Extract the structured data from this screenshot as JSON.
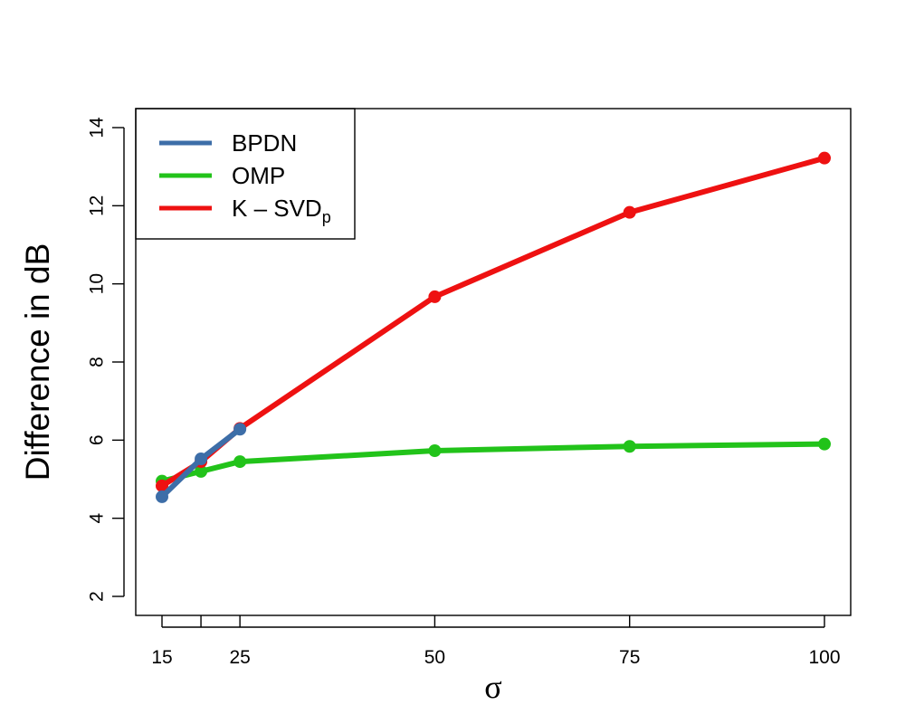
{
  "chart_data": {
    "type": "line",
    "title": "",
    "xlabel": "σ",
    "ylabel": "Difference in dB",
    "xlim": [
      15,
      100
    ],
    "ylim": [
      2,
      14
    ],
    "x_ticks": [
      15,
      20,
      25,
      50,
      75,
      100
    ],
    "x_tick_labels": [
      "15",
      "",
      "25",
      "50",
      "75",
      "100"
    ],
    "y_ticks": [
      2,
      4,
      6,
      8,
      10,
      12,
      14
    ],
    "y_tick_labels": [
      "2",
      "4",
      "6",
      "8",
      "10",
      "12",
      "14"
    ],
    "legend_position": "top-left",
    "grid": false,
    "series": [
      {
        "name": "OMP",
        "color": "#22c31a",
        "x": [
          15,
          20,
          25,
          50,
          75,
          100
        ],
        "y": [
          4.95,
          5.2,
          5.45,
          5.73,
          5.84,
          5.9
        ]
      },
      {
        "name": "K – SVD",
        "name_subscript": "p",
        "color": "#ee1111",
        "x": [
          15,
          20,
          25,
          50,
          75,
          100
        ],
        "y": [
          4.83,
          5.45,
          6.3,
          9.67,
          11.83,
          13.22
        ]
      },
      {
        "name": "BPDN",
        "color": "#3d6ea8",
        "x": [
          15,
          20,
          25
        ],
        "y": [
          4.55,
          5.52,
          6.28
        ]
      }
    ],
    "legend_order": [
      "BPDN",
      "OMP",
      "K – SVD"
    ]
  }
}
